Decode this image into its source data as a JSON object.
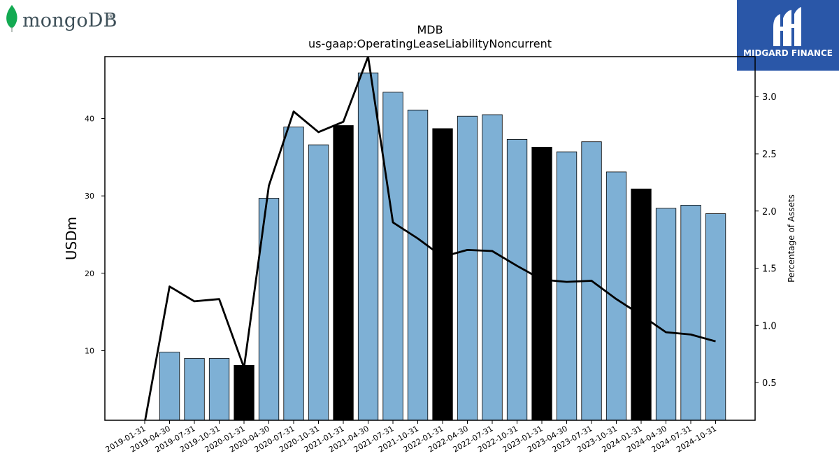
{
  "logos": {
    "left_text": "mongoDB",
    "left_reg": "®",
    "right_text": "MIDGARD FINANCE"
  },
  "chart_data": {
    "type": "bar",
    "title": "MDB",
    "subtitle": "us-gaap:OperatingLeaseLiabilityNoncurrent",
    "ylabel": "USDm",
    "y2label": "Percentage of Assets",
    "ylim": [
      1,
      48
    ],
    "y2lim": [
      0.17,
      3.35
    ],
    "yticks": [
      10,
      20,
      30,
      40
    ],
    "y2ticks": [
      0.5,
      1.0,
      1.5,
      2.0,
      2.5,
      3.0
    ],
    "colors": {
      "bar": "#7eb0d5",
      "highlight": "#000000",
      "line": "#000000"
    },
    "categories": [
      "2019-01-31",
      "2019-04-30",
      "2019-07-31",
      "2019-10-31",
      "2020-01-31",
      "2020-04-30",
      "2020-07-31",
      "2020-10-31",
      "2021-01-31",
      "2021-04-30",
      "2021-07-31",
      "2021-10-31",
      "2022-01-31",
      "2022-04-30",
      "2022-07-31",
      "2022-10-31",
      "2023-01-31",
      "2023-04-30",
      "2023-07-31",
      "2023-10-31",
      "2024-01-31",
      "2024-04-30",
      "2024-07-31",
      "2024-10-31"
    ],
    "series": [
      {
        "type": "bar",
        "values": [
          null,
          9.8,
          9.0,
          9.0,
          8.1,
          29.7,
          38.9,
          36.6,
          39.1,
          45.9,
          43.4,
          41.1,
          38.7,
          40.3,
          40.5,
          37.3,
          36.3,
          35.7,
          37.0,
          33.1,
          30.9,
          28.4,
          28.8,
          27.7
        ],
        "highlight": [
          false,
          false,
          false,
          false,
          true,
          false,
          false,
          false,
          true,
          false,
          false,
          false,
          true,
          false,
          false,
          false,
          true,
          false,
          false,
          false,
          true,
          false,
          false,
          false
        ]
      },
      {
        "type": "line",
        "axis": "right",
        "values": [
          0.15,
          1.34,
          1.21,
          1.23,
          0.63,
          2.22,
          2.87,
          2.69,
          2.78,
          3.35,
          1.9,
          1.76,
          1.6,
          1.66,
          1.65,
          1.52,
          1.4,
          1.38,
          1.39,
          1.23,
          1.09,
          0.94,
          0.92,
          0.86
        ]
      }
    ]
  }
}
